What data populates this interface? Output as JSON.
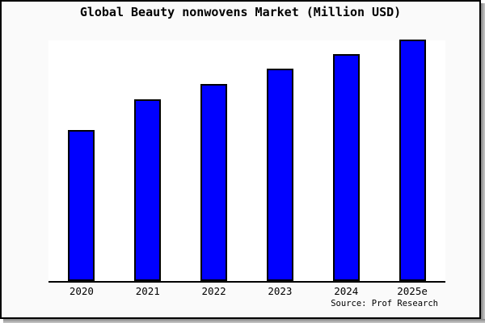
{
  "chart_data": {
    "type": "bar",
    "title": "Global Beauty nonwovens Market (Million USD)",
    "categories": [
      "2020",
      "2021",
      "2022",
      "2023",
      "2024",
      "2025e"
    ],
    "values": [
      187,
      225,
      244,
      263,
      281,
      299
    ],
    "values_note": "No y-axis, gridlines or data labels are shown; values are relative bar heights read from the image (max plot height 300).",
    "xlabel": "",
    "ylabel": "",
    "ylim": [
      0,
      300
    ],
    "grid": false,
    "legend": false,
    "bar_color": "#0000ff",
    "bar_border_color": "#000000",
    "plot_background": "#ffffff",
    "canvas_background": "#fafafa",
    "axis_color": "#000000"
  },
  "footer": {
    "source": "Source: Prof Research"
  }
}
